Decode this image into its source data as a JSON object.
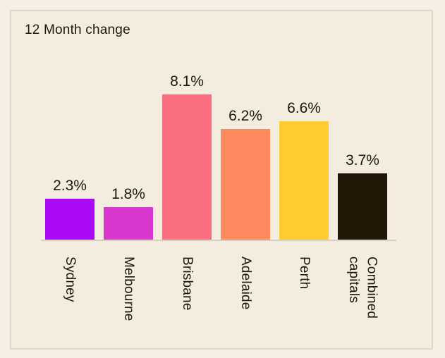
{
  "page": {
    "background": "#F6EFE3"
  },
  "card": {
    "background": "#F4EDDF",
    "border_color": "#DCD6C6"
  },
  "chart_data": {
    "type": "bar",
    "title": "12 Month change",
    "categories": [
      "Sydney",
      "Melbourne",
      "Brisbane",
      "Adelaide",
      "Perth",
      "Combined capitals"
    ],
    "values": [
      2.3,
      1.8,
      8.1,
      6.2,
      6.6,
      3.7
    ],
    "data_labels": [
      "2.3%",
      "1.8%",
      "8.1%",
      "6.2%",
      "6.6%",
      "3.7%"
    ],
    "bar_colors": [
      "#AA0AF6",
      "#D938CF",
      "#FB6E80",
      "#FD8A5E",
      "#FECC2F",
      "#201707"
    ],
    "unit": "%",
    "ylim": [
      0,
      8.5
    ],
    "xlabel": "",
    "ylabel": "",
    "gridlines": false,
    "legend_position": "none",
    "data_label_position": "above-bar",
    "x_tick_label_rotation": 90,
    "axis_line_color": "#D5D0C2",
    "text_color": "#1F1708"
  }
}
